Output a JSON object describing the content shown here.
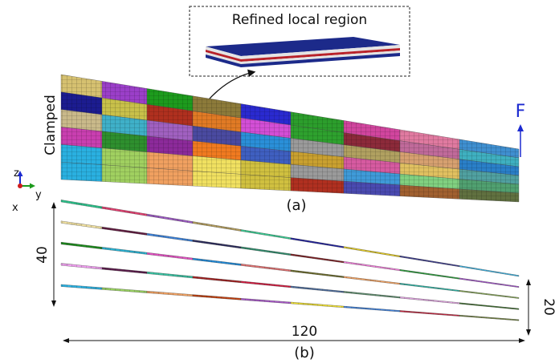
{
  "figure": {
    "inset_label": "Refined local region",
    "clamped_label": "Clamped",
    "force_label": "F",
    "panel_a_label": "(a)",
    "panel_b_label": "(b)",
    "dim_height": "40",
    "dim_length": "120",
    "dim_tip": "20",
    "axis_z": "z",
    "axis_y": "y",
    "axis_x": "x"
  },
  "colors": {
    "panel_a_cells": [
      [
        "#d6c170",
        "#9b3fc9",
        "#1d9b1d",
        "#8c7a3a",
        "#2a2ad0",
        "#2c9e2c",
        "#d1459e",
        "#e07aa0",
        "#3f8fd0"
      ],
      [
        "#1c1c90",
        "#c8c04a",
        "#b0301f",
        "#e07a25",
        "#d34ed6",
        "#2ea12e",
        "#8c2a3a",
        "#c06a9a",
        "#3fb0c0"
      ],
      [
        "#c9b98a",
        "#3fb0c8",
        "#a060c0",
        "#4a4aa0",
        "#2a8fd8",
        "#9a9a9a",
        "#b0a060",
        "#d6a070",
        "#2a7fc8"
      ],
      [
        "#c93fb0",
        "#2e8f2e",
        "#8c2a9a",
        "#f07a20",
        "#3f5fc0",
        "#c9a030",
        "#d65aa0",
        "#e0c060",
        "#50a0a0"
      ],
      [
        "#2ab0e0",
        "#a0d060",
        "#f0a060",
        "#f0e060",
        "#d0c040",
        "#9a9a9a",
        "#3f9ad8",
        "#80d080",
        "#50a070"
      ],
      [
        "#2ab0e0",
        "#a0d060",
        "#f0a060",
        "#f0e060",
        "#d0c040",
        "#b03020",
        "#4a4ab0",
        "#a06030",
        "#607040"
      ]
    ],
    "panel_b_cells": [
      [
        "#2bc08a",
        "#e04070",
        "#9a58c0",
        "#b09a5a",
        "#38c890",
        "#20209a",
        "#e0c820",
        "#3a3a8a",
        "#38b0e0"
      ],
      [
        "#f0e0a0",
        "#601c40",
        "#3a80d8",
        "#2a2a5a",
        "#2e8a6a",
        "#7a1c20",
        "#f07ad8",
        "#2a9a3a",
        "#a050c8"
      ],
      [
        "#1c8a1c",
        "#2ab0d0",
        "#e050c0",
        "#208ad8",
        "#e07070",
        "#6a6a2a",
        "#f0a060",
        "#2ab0a0",
        "#80a050"
      ],
      [
        "#f0a0f0",
        "#5a1c4a",
        "#38c0a0",
        "#a02020",
        "#d01c40",
        "#4a6a9a",
        "#5a8a6a",
        "#e0a0e0",
        "#3a6a2a"
      ],
      [
        "#2ab0e0",
        "#98d060",
        "#f0a060",
        "#c04010",
        "#a858c8",
        "#f0e030",
        "#4080d8",
        "#c02840",
        "#708040"
      ]
    ]
  }
}
